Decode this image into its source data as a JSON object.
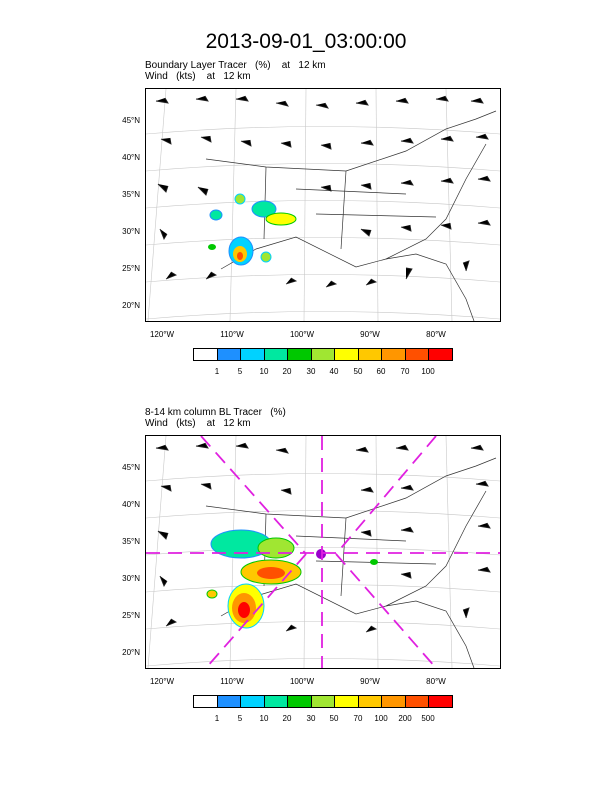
{
  "title": "2013-09-01_03:00:00",
  "panels": [
    {
      "subtitle1": "Boundary Layer Tracer   (%)    at   12 km",
      "subtitle2": "Wind   (kts)    at   12 km",
      "lat_labels": [
        "45°N",
        "40°N",
        "35°N",
        "30°N",
        "25°N",
        "20°N"
      ],
      "lon_labels": [
        "120°W",
        "110°W",
        "100°W",
        "90°W",
        "80°W"
      ],
      "colorbar_labels": [
        "1",
        "5",
        "10",
        "20",
        "30",
        "40",
        "50",
        "60",
        "70",
        "100"
      ],
      "colorbar_colors": [
        "#ffffff",
        "#1e90ff",
        "#00d2ff",
        "#00e8a0",
        "#00c800",
        "#a0e632",
        "#ffff00",
        "#ffc800",
        "#ff9600",
        "#ff5000",
        "#ff0000"
      ]
    },
    {
      "subtitle1": "8-14 km column BL Tracer   (%)",
      "subtitle2": "Wind   (kts)    at   12 km",
      "lat_labels": [
        "45°N",
        "40°N",
        "35°N",
        "30°N",
        "25°N",
        "20°N"
      ],
      "lon_labels": [
        "120°W",
        "110°W",
        "100°W",
        "90°W",
        "80°W"
      ],
      "colorbar_labels": [
        "1",
        "5",
        "10",
        "20",
        "30",
        "50",
        "70",
        "100",
        "200",
        "500"
      ],
      "colorbar_colors": [
        "#ffffff",
        "#1e90ff",
        "#00d2ff",
        "#00e8a0",
        "#00c800",
        "#a0e632",
        "#ffff00",
        "#ffc800",
        "#ff9600",
        "#ff5000",
        "#ff0000"
      ]
    }
  ]
}
